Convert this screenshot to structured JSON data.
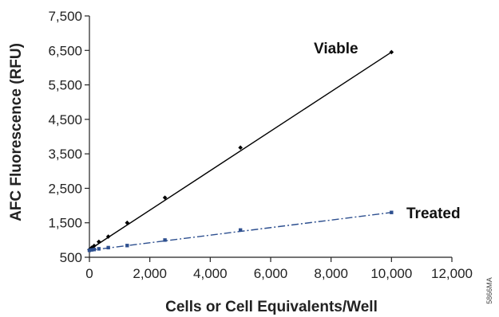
{
  "chart_data": {
    "type": "scatter",
    "xlabel": "Cells or Cell Equivalents/Well",
    "ylabel": "AFC Fluorescence (RFU)",
    "xlim": [
      0,
      12000
    ],
    "ylim": [
      500,
      7500
    ],
    "xticks": [
      0,
      2000,
      4000,
      6000,
      8000,
      10000,
      12000
    ],
    "xtick_labels": [
      "0",
      "2,000",
      "4,000",
      "6,000",
      "8,000",
      "10,000",
      "12,000"
    ],
    "yticks": [
      500,
      1500,
      2500,
      3500,
      4500,
      5500,
      6500,
      7500
    ],
    "ytick_labels": [
      "500",
      "1,500",
      "2,500",
      "3,500",
      "4,500",
      "5,500",
      "6,500",
      "7,500"
    ],
    "grid": false,
    "legend": "none",
    "series": [
      {
        "name": "Viable",
        "color": "#000000",
        "marker": "diamond",
        "line_style": "solid",
        "fit": [
          [
            0,
            720
          ],
          [
            10000,
            6450
          ]
        ],
        "points": [
          {
            "x": 0,
            "y": 720
          },
          {
            "x": 78,
            "y": 780
          },
          {
            "x": 156,
            "y": 830
          },
          {
            "x": 312,
            "y": 950
          },
          {
            "x": 625,
            "y": 1100
          },
          {
            "x": 1250,
            "y": 1500
          },
          {
            "x": 2500,
            "y": 2230
          },
          {
            "x": 5000,
            "y": 3680
          },
          {
            "x": 10000,
            "y": 6450
          }
        ]
      },
      {
        "name": "Treated",
        "color": "#2d4f8f",
        "marker": "square",
        "line_style": "dash-dot",
        "fit": [
          [
            0,
            700
          ],
          [
            10000,
            1800
          ]
        ],
        "points": [
          {
            "x": 0,
            "y": 700
          },
          {
            "x": 78,
            "y": 715
          },
          {
            "x": 156,
            "y": 725
          },
          {
            "x": 312,
            "y": 745
          },
          {
            "x": 625,
            "y": 780
          },
          {
            "x": 1250,
            "y": 840
          },
          {
            "x": 2500,
            "y": 1000
          },
          {
            "x": 5000,
            "y": 1290
          },
          {
            "x": 10000,
            "y": 1800
          }
        ]
      }
    ],
    "figure_code": "5866MA"
  }
}
